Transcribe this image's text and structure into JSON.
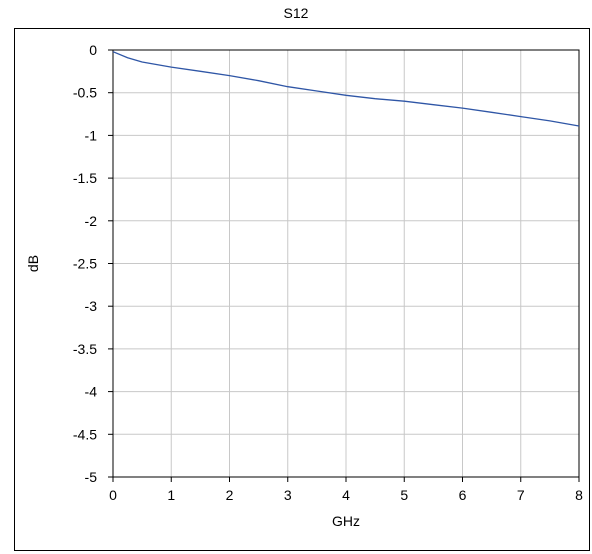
{
  "chart_data": {
    "type": "line",
    "title": "S12",
    "xlabel": "GHz",
    "ylabel": "dB",
    "xlim": [
      0,
      8
    ],
    "ylim": [
      -5,
      0
    ],
    "grid": true,
    "x_ticks": [
      "0",
      "1",
      "2",
      "3",
      "4",
      "5",
      "6",
      "7",
      "8"
    ],
    "y_ticks": [
      "0",
      "-0.5",
      "-1",
      "-1.5",
      "-2",
      "-2.5",
      "-3",
      "-3.5",
      "-4",
      "-4.5",
      "-5"
    ],
    "series": [
      {
        "color": "#2f56a6",
        "x": [
          0,
          0.25,
          0.5,
          1,
          1.5,
          2,
          2.5,
          3,
          3.5,
          4,
          4.5,
          5,
          5.5,
          6,
          6.5,
          7,
          7.5,
          8
        ],
        "y": [
          -0.02,
          -0.09,
          -0.14,
          -0.2,
          -0.25,
          -0.3,
          -0.36,
          -0.43,
          -0.48,
          -0.53,
          -0.57,
          -0.6,
          -0.64,
          -0.68,
          -0.73,
          -0.78,
          -0.83,
          -0.89
        ]
      }
    ]
  }
}
